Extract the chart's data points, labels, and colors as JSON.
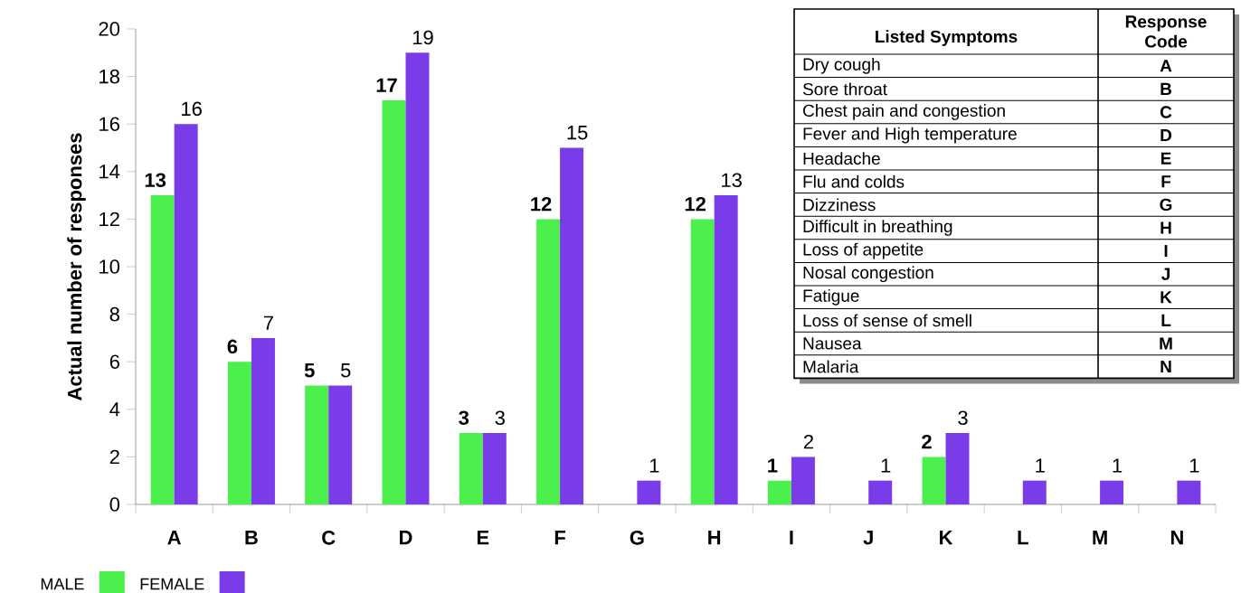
{
  "chart_data": {
    "type": "bar",
    "ylabel": "Actual number of responses",
    "categories": [
      "A",
      "B",
      "C",
      "D",
      "E",
      "F",
      "G",
      "H",
      "I",
      "J",
      "K",
      "L",
      "M",
      "N"
    ],
    "series": [
      {
        "name": "MALE",
        "color": "#4cf04c",
        "values": [
          13,
          6,
          5,
          17,
          3,
          12,
          null,
          12,
          1,
          null,
          2,
          null,
          null,
          null
        ]
      },
      {
        "name": "FEMALE",
        "color": "#7a3ce8",
        "values": [
          16,
          7,
          5,
          19,
          3,
          15,
          1,
          13,
          2,
          1,
          3,
          1,
          1,
          1
        ]
      }
    ],
    "ylim": [
      0,
      20
    ],
    "yticks": [
      0,
      2,
      4,
      6,
      8,
      10,
      12,
      14,
      16,
      18,
      20
    ],
    "legend": "bottom left",
    "data_labels": true,
    "annotations": [
      "Listed Symptoms",
      "Response Code",
      "Dry cough",
      "Sore throat",
      "Chest pain and congestion",
      "Fever and High temperature",
      "Headache",
      "Flu and colds",
      "Dizziness",
      "Difficult in breathing",
      "Loss of appetite",
      "Nosal congestion",
      "Fatigue",
      "Loss of sense of smell",
      "Nausea",
      "Malaria"
    ]
  }
}
